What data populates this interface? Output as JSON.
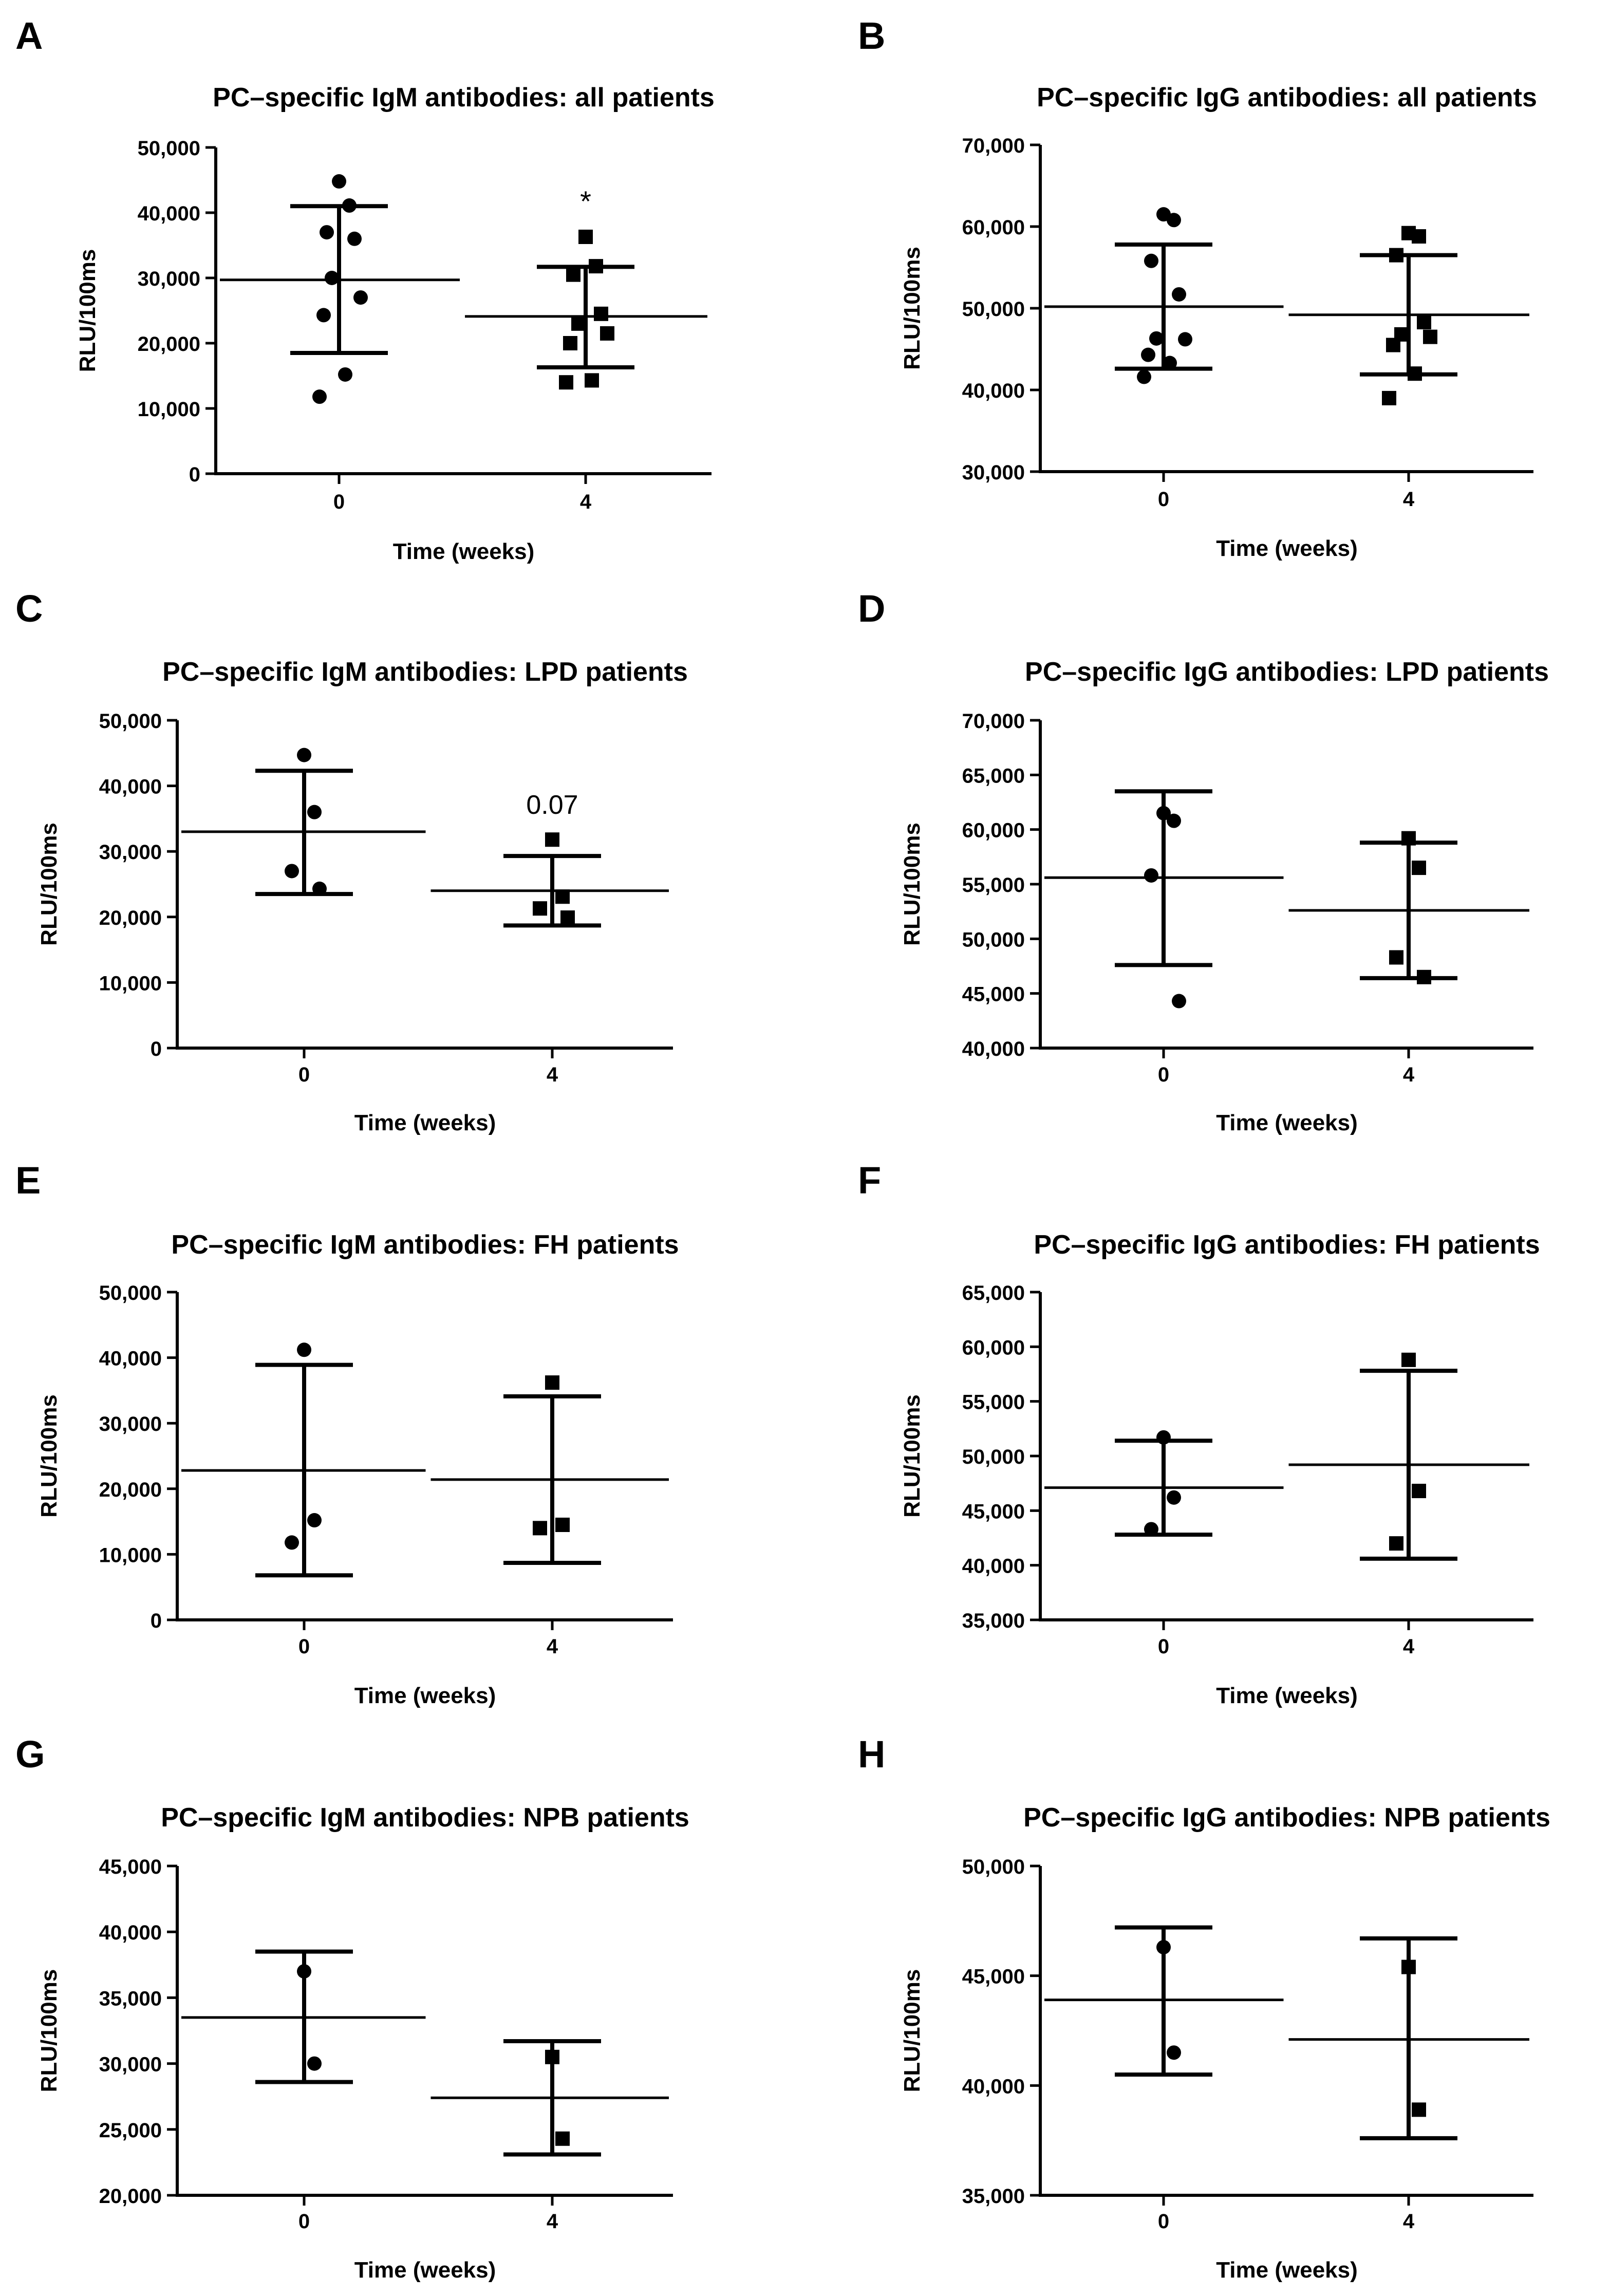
{
  "figure": {
    "panels": [
      {
        "letter": "A",
        "title": "PC–specific IgM antibodies: all patients",
        "xlabel": "Time (weeks)",
        "ylabel": "RLU/100ms",
        "annotation": "*"
      },
      {
        "letter": "B",
        "title": "PC–specific IgG antibodies: all patients",
        "xlabel": "Time (weeks)",
        "ylabel": "RLU/100ms",
        "annotation": ""
      },
      {
        "letter": "C",
        "title": "PC–specific IgM antibodies: LPD patients",
        "xlabel": "Time (weeks)",
        "ylabel": "RLU/100ms",
        "annotation": "0.07"
      },
      {
        "letter": "D",
        "title": "PC–specific IgG antibodies: LPD patients",
        "xlabel": "Time (weeks)",
        "ylabel": "RLU/100ms",
        "annotation": ""
      },
      {
        "letter": "E",
        "title": "PC–specific IgM antibodies: FH patients",
        "xlabel": "Time (weeks)",
        "ylabel": "RLU/100ms",
        "annotation": ""
      },
      {
        "letter": "F",
        "title": "PC–specific IgG antibodies: FH patients",
        "xlabel": "Time (weeks)",
        "ylabel": "RLU/100ms",
        "annotation": ""
      },
      {
        "letter": "G",
        "title": "PC–specific IgM antibodies: NPB patients",
        "xlabel": "Time (weeks)",
        "ylabel": "RLU/100ms",
        "annotation": ""
      },
      {
        "letter": "H",
        "title": "PC–specific IgG antibodies: NPB patients",
        "xlabel": "Time (weeks)",
        "ylabel": "RLU/100ms",
        "annotation": ""
      }
    ]
  },
  "chart_data": [
    {
      "type": "scatter",
      "title": "PC–specific IgM antibodies: all patients",
      "xlabel": "Time (weeks)",
      "ylabel": "RLU/100ms",
      "categories": [
        "0",
        "4"
      ],
      "ylim": [
        0,
        50000
      ],
      "yticks": [
        "0",
        "10,000",
        "20,000",
        "30,000",
        "40,000",
        "50,000"
      ],
      "tickvalues": [
        0,
        10000,
        20000,
        30000,
        40000,
        50000
      ],
      "annotation": "*",
      "groups": [
        {
          "marker": "circle",
          "points": [
            44800,
            41100,
            37000,
            36000,
            30000,
            27000,
            24300,
            15200,
            11800
          ],
          "mean": 29700,
          "sd_low": 18500,
          "sd_high": 41000
        },
        {
          "marker": "square",
          "points": [
            36300,
            31800,
            30500,
            24500,
            23000,
            21500,
            20000,
            14300,
            14000
          ],
          "mean": 24100,
          "sd_low": 16300,
          "sd_high": 31700
        }
      ]
    },
    {
      "type": "scatter",
      "title": "PC–specific IgG antibodies: all patients",
      "xlabel": "Time (weeks)",
      "ylabel": "RLU/100ms",
      "categories": [
        "0",
        "4"
      ],
      "ylim": [
        30000,
        70000
      ],
      "yticks": [
        "30,000",
        "40,000",
        "50,000",
        "60,000",
        "70,000"
      ],
      "tickvalues": [
        30000,
        40000,
        50000,
        60000,
        70000
      ],
      "annotation": "",
      "groups": [
        {
          "marker": "circle",
          "points": [
            61500,
            60800,
            55800,
            51700,
            46300,
            46200,
            44300,
            43300,
            41600
          ],
          "mean": 50200,
          "sd_low": 42600,
          "sd_high": 57800
        },
        {
          "marker": "square",
          "points": [
            59200,
            58800,
            56500,
            48300,
            46800,
            46500,
            45500,
            42000,
            39000
          ],
          "mean": 49200,
          "sd_low": 41900,
          "sd_high": 56500
        }
      ]
    },
    {
      "type": "scatter",
      "title": "PC–specific IgM antibodies: LPD patients",
      "xlabel": "Time (weeks)",
      "ylabel": "RLU/100ms",
      "categories": [
        "0",
        "4"
      ],
      "ylim": [
        0,
        50000
      ],
      "yticks": [
        "0",
        "10,000",
        "20,000",
        "30,000",
        "40,000",
        "50,000"
      ],
      "tickvalues": [
        0,
        10000,
        20000,
        30000,
        40000,
        50000
      ],
      "annotation": "0.07",
      "groups": [
        {
          "marker": "circle",
          "points": [
            44700,
            36000,
            27000,
            24300
          ],
          "mean": 33000,
          "sd_low": 23500,
          "sd_high": 42300
        },
        {
          "marker": "square",
          "points": [
            31800,
            23100,
            21300,
            19900
          ],
          "mean": 24000,
          "sd_low": 18700,
          "sd_high": 29300
        }
      ]
    },
    {
      "type": "scatter",
      "title": "PC–specific IgG antibodies: LPD patients",
      "xlabel": "Time (weeks)",
      "ylabel": "RLU/100ms",
      "categories": [
        "0",
        "4"
      ],
      "ylim": [
        40000,
        70000
      ],
      "yticks": [
        "40,000",
        "45,000",
        "50,000",
        "55,000",
        "60,000",
        "65,000",
        "70,000"
      ],
      "tickvalues": [
        40000,
        45000,
        50000,
        55000,
        60000,
        65000,
        70000
      ],
      "annotation": "",
      "groups": [
        {
          "marker": "circle",
          "points": [
            61500,
            60800,
            55800,
            44300
          ],
          "mean": 55600,
          "sd_low": 47600,
          "sd_high": 63500
        },
        {
          "marker": "square",
          "points": [
            59200,
            56500,
            48300,
            46500
          ],
          "mean": 52600,
          "sd_low": 46400,
          "sd_high": 58800
        }
      ]
    },
    {
      "type": "scatter",
      "title": "PC–specific IgM antibodies: FH patients",
      "xlabel": "Time (weeks)",
      "ylabel": "RLU/100ms",
      "categories": [
        "0",
        "4"
      ],
      "ylim": [
        0,
        50000
      ],
      "yticks": [
        "0",
        "10,000",
        "20,000",
        "30,000",
        "40,000",
        "50,000"
      ],
      "tickvalues": [
        0,
        10000,
        20000,
        30000,
        40000,
        50000
      ],
      "annotation": "",
      "groups": [
        {
          "marker": "circle",
          "points": [
            41200,
            15200,
            11800
          ],
          "mean": 22800,
          "sd_low": 6800,
          "sd_high": 38900
        },
        {
          "marker": "square",
          "points": [
            36200,
            14500,
            14000
          ],
          "mean": 21400,
          "sd_low": 8700,
          "sd_high": 34100
        }
      ]
    },
    {
      "type": "scatter",
      "title": "PC–specific IgG antibodies: FH patients",
      "xlabel": "Time (weeks)",
      "ylabel": "RLU/100ms",
      "categories": [
        "0",
        "4"
      ],
      "ylim": [
        35000,
        65000
      ],
      "yticks": [
        "35,000",
        "40,000",
        "45,000",
        "50,000",
        "55,000",
        "60,000",
        "65,000"
      ],
      "tickvalues": [
        35000,
        40000,
        45000,
        50000,
        55000,
        60000,
        65000
      ],
      "annotation": "",
      "groups": [
        {
          "marker": "circle",
          "points": [
            51700,
            46200,
            43300
          ],
          "mean": 47100,
          "sd_low": 42800,
          "sd_high": 51400
        },
        {
          "marker": "square",
          "points": [
            58800,
            46800,
            42000
          ],
          "mean": 49200,
          "sd_low": 40600,
          "sd_high": 57800
        }
      ]
    },
    {
      "type": "scatter",
      "title": "PC–specific IgM antibodies: NPB patients",
      "xlabel": "Time (weeks)",
      "ylabel": "RLU/100ms",
      "categories": [
        "0",
        "4"
      ],
      "ylim": [
        20000,
        45000
      ],
      "yticks": [
        "20,000",
        "25,000",
        "30,000",
        "35,000",
        "40,000",
        "45,000"
      ],
      "tickvalues": [
        20000,
        25000,
        30000,
        35000,
        40000,
        45000
      ],
      "annotation": "",
      "groups": [
        {
          "marker": "circle",
          "points": [
            37000,
            30000
          ],
          "mean": 33500,
          "sd_low": 28600,
          "sd_high": 38500
        },
        {
          "marker": "square",
          "points": [
            30500,
            24300
          ],
          "mean": 27400,
          "sd_low": 23100,
          "sd_high": 31700
        }
      ]
    },
    {
      "type": "scatter",
      "title": "PC–specific IgG antibodies: NPB patients",
      "xlabel": "Time (weeks)",
      "ylabel": "RLU/100ms",
      "categories": [
        "0",
        "4"
      ],
      "ylim": [
        35000,
        50000
      ],
      "yticks": [
        "35,000",
        "40,000",
        "45,000",
        "50,000"
      ],
      "tickvalues": [
        35000,
        40000,
        45000,
        50000
      ],
      "annotation": "",
      "groups": [
        {
          "marker": "circle",
          "points": [
            46300,
            41500
          ],
          "mean": 43900,
          "sd_low": 40500,
          "sd_high": 47200
        },
        {
          "marker": "square",
          "points": [
            45400,
            38900
          ],
          "mean": 42100,
          "sd_low": 37600,
          "sd_high": 46700
        }
      ]
    }
  ]
}
